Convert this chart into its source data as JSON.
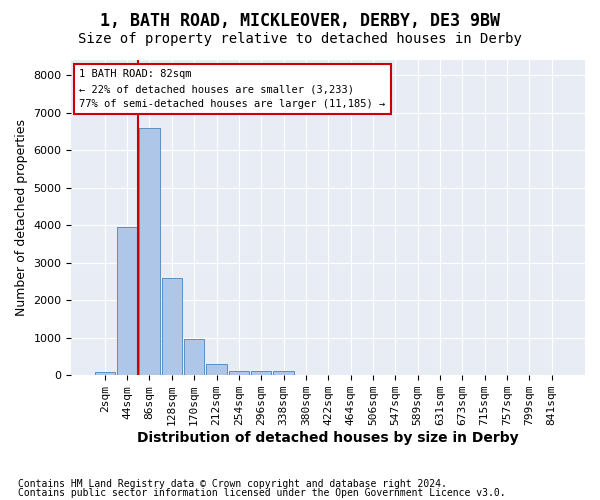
{
  "title1": "1, BATH ROAD, MICKLEOVER, DERBY, DE3 9BW",
  "title2": "Size of property relative to detached houses in Derby",
  "xlabel": "Distribution of detached houses by size in Derby",
  "ylabel": "Number of detached properties",
  "bar_values": [
    75,
    3950,
    6600,
    2600,
    960,
    310,
    125,
    125,
    100,
    0,
    0,
    0,
    0,
    0,
    0,
    0,
    0,
    0,
    0,
    0,
    0
  ],
  "bar_labels": [
    "2sqm",
    "44sqm",
    "86sqm",
    "128sqm",
    "170sqm",
    "212sqm",
    "254sqm",
    "296sqm",
    "338sqm",
    "380sqm",
    "422sqm",
    "464sqm",
    "506sqm",
    "547sqm",
    "589sqm",
    "631sqm",
    "673sqm",
    "715sqm",
    "757sqm",
    "799sqm",
    "841sqm"
  ],
  "bar_color": "#aec6e8",
  "bar_edge_color": "#5a8fc2",
  "bg_color": "#e8ecf5",
  "grid_color": "#ffffff",
  "vline_x": 1.5,
  "vline_color": "#cc0000",
  "annotation_text": "1 BATH ROAD: 82sqm\n← 22% of detached houses are smaller (3,233)\n77% of semi-detached houses are larger (11,185) →",
  "annotation_box_color": "#ffffff",
  "annotation_box_edge": "#cc0000",
  "footnote1": "Contains HM Land Registry data © Crown copyright and database right 2024.",
  "footnote2": "Contains public sector information licensed under the Open Government Licence v3.0.",
  "ylim": [
    0,
    8400
  ],
  "yticks": [
    0,
    1000,
    2000,
    3000,
    4000,
    5000,
    6000,
    7000,
    8000
  ],
  "title1_fontsize": 12,
  "title2_fontsize": 10,
  "xlabel_fontsize": 10,
  "ylabel_fontsize": 9,
  "tick_fontsize": 8,
  "footnote_fontsize": 7
}
